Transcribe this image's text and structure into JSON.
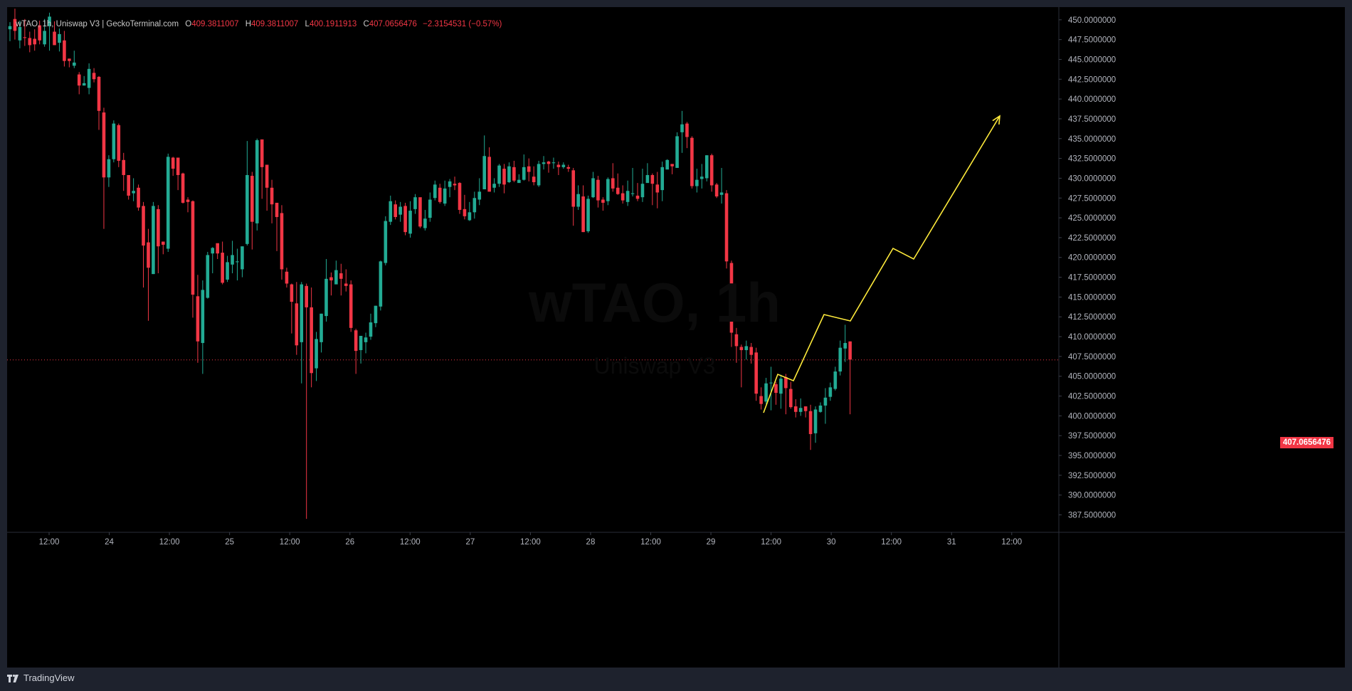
{
  "legend": {
    "symbol": "wTAO, 1h, Uniswap V3 | GeckoTerminal.com",
    "open_key": "O",
    "open": "409.3811007",
    "high_key": "H",
    "high": "409.3811007",
    "low_key": "L",
    "low": "400.1911913",
    "close_key": "C",
    "close": "407.0656476",
    "change": "−2.3154531 (−0.57%)"
  },
  "watermark": {
    "title": "wTAO, 1h",
    "subtitle": "Uniswap V3"
  },
  "current_price_label": "407.0656476",
  "brand": "TradingView",
  "colors": {
    "up": "#22ab94",
    "down": "#f23645",
    "drawing": "#ffeb3b",
    "background": "#000000"
  },
  "chart_data": {
    "type": "candlestick",
    "ylim": [
      385.3,
      451.6
    ],
    "y_ticks": [
      "450.0000000",
      "447.5000000",
      "445.0000000",
      "442.5000000",
      "440.0000000",
      "437.5000000",
      "435.0000000",
      "432.5000000",
      "430.0000000",
      "427.5000000",
      "425.0000000",
      "422.5000000",
      "420.0000000",
      "417.5000000",
      "415.0000000",
      "412.5000000",
      "410.0000000",
      "407.5000000",
      "405.0000000",
      "402.5000000",
      "400.0000000",
      "397.5000000",
      "395.0000000",
      "392.5000000",
      "390.0000000",
      "387.5000000"
    ],
    "x_ticks": [
      "12:00",
      "24",
      "12:00",
      "25",
      "12:00",
      "26",
      "12:00",
      "27",
      "12:00",
      "28",
      "12:00",
      "29",
      "12:00",
      "30",
      "12:00",
      "31",
      "12:00"
    ],
    "candles": [
      [
        448.8,
        449.2,
        449.7,
        447.3
      ],
      [
        450.1,
        448.6,
        451.4,
        447.5
      ],
      [
        447.4,
        449.1,
        449.9,
        446.4
      ],
      [
        447.8,
        447.7,
        450.1,
        446.7
      ],
      [
        447.7,
        446.8,
        448.5,
        445.9
      ],
      [
        447.6,
        446.9,
        448.8,
        446.1
      ],
      [
        449.3,
        447.4,
        449.9,
        446.9
      ],
      [
        446.9,
        448.6,
        450.1,
        446.6
      ],
      [
        449.2,
        450.4,
        450.9,
        446.1
      ],
      [
        448.5,
        446.8,
        449.8,
        446.8
      ],
      [
        447.1,
        448.2,
        448.9,
        446.0
      ],
      [
        447.4,
        444.8,
        448.6,
        444.1
      ],
      [
        445.1,
        444.8,
        445.1,
        444.0
      ],
      [
        444.2,
        444.6,
        446.1,
        443.9
      ],
      [
        443.1,
        441.7,
        443.4,
        440.6
      ],
      [
        441.7,
        442.0,
        442.9,
        441.7
      ],
      [
        441.4,
        443.8,
        444.5,
        440.6
      ],
      [
        443.3,
        442.5,
        443.9,
        442.1
      ],
      [
        442.8,
        438.5,
        442.9,
        436.1
      ],
      [
        438.3,
        430.1,
        438.9,
        423.6
      ],
      [
        430.1,
        432.4,
        432.9,
        428.9
      ],
      [
        432.4,
        436.9,
        437.3,
        432.0
      ],
      [
        436.7,
        432.2,
        436.9,
        431.4
      ],
      [
        432.3,
        430.4,
        433.2,
        428.4
      ],
      [
        430.4,
        427.8,
        430.4,
        427.3
      ],
      [
        428.1,
        428.4,
        430.0,
        427.1
      ],
      [
        428.8,
        426.3,
        429.2,
        425.9
      ],
      [
        426.5,
        421.5,
        427.0,
        416.2
      ],
      [
        421.9,
        418.7,
        423.6,
        412.0
      ],
      [
        417.9,
        426.5,
        427.0,
        417.9
      ],
      [
        426.1,
        421.4,
        426.6,
        418.0
      ],
      [
        422.0,
        421.6,
        422.0,
        420.4
      ],
      [
        421.1,
        432.7,
        433.1,
        420.7
      ],
      [
        432.6,
        431.2,
        432.7,
        430.3
      ],
      [
        432.6,
        430.4,
        432.5,
        428.5
      ],
      [
        430.6,
        426.9,
        430.7,
        426.8
      ],
      [
        427.3,
        427.0,
        427.6,
        425.7
      ],
      [
        427.1,
        415.3,
        427.2,
        412.4
      ],
      [
        415.1,
        409.4,
        417.8,
        406.7
      ],
      [
        409.2,
        415.9,
        417.1,
        405.3
      ],
      [
        414.9,
        420.3,
        420.7,
        414.8
      ],
      [
        420.5,
        421.2,
        421.3,
        418.0
      ],
      [
        421.8,
        420.5,
        421.6,
        419.8
      ],
      [
        420.6,
        416.8,
        422.0,
        416.6
      ],
      [
        417.2,
        419.4,
        420.2,
        416.9
      ],
      [
        419.1,
        420.3,
        422.1,
        418.0
      ],
      [
        419.4,
        419.5,
        421.1,
        417.1
      ],
      [
        418.5,
        421.4,
        421.4,
        417.5
      ],
      [
        421.7,
        430.4,
        434.7,
        421.5
      ],
      [
        430.3,
        424.5,
        430.8,
        421.0
      ],
      [
        424.3,
        434.8,
        435.0,
        423.4
      ],
      [
        434.9,
        431.4,
        434.5,
        427.4
      ],
      [
        431.7,
        428.8,
        431.4,
        425.9
      ],
      [
        428.8,
        426.7,
        429.8,
        424.3
      ],
      [
        426.9,
        425.1,
        426.6,
        420.8
      ],
      [
        425.6,
        418.5,
        426.6,
        417.2
      ],
      [
        418.2,
        416.7,
        418.7,
        416.2
      ],
      [
        416.6,
        414.4,
        416.7,
        410.4
      ],
      [
        414.2,
        408.9,
        416.9,
        407.7
      ],
      [
        409.3,
        416.6,
        416.9,
        404.1
      ],
      [
        416.4,
        413.7,
        416.7,
        387.0
      ],
      [
        413.7,
        405.4,
        416.2,
        403.6
      ],
      [
        406.0,
        409.7,
        410.6,
        404.4
      ],
      [
        409.3,
        412.9,
        412.9,
        408.0
      ],
      [
        412.6,
        417.3,
        419.8,
        411.9
      ],
      [
        417.5,
        417.1,
        418.1,
        415.2
      ],
      [
        416.6,
        418.4,
        419.6,
        417.1
      ],
      [
        418.0,
        417.3,
        419.2,
        415.2
      ],
      [
        416.7,
        416.4,
        418.5,
        415.7
      ],
      [
        416.6,
        411.1,
        417.1,
        410.6
      ],
      [
        410.8,
        408.2,
        411.0,
        405.3
      ],
      [
        408.3,
        410.1,
        410.1,
        406.6
      ],
      [
        409.3,
        409.9,
        410.5,
        407.9
      ],
      [
        410.0,
        411.8,
        412.9,
        409.6
      ],
      [
        411.7,
        413.9,
        413.9,
        411.2
      ],
      [
        413.8,
        419.5,
        419.6,
        413.3
      ],
      [
        419.3,
        424.6,
        425.2,
        419.0
      ],
      [
        424.5,
        427.1,
        427.8,
        424.1
      ],
      [
        426.7,
        425.1,
        427.2,
        424.8
      ],
      [
        425.4,
        426.4,
        427.0,
        424.5
      ],
      [
        426.5,
        423.2,
        426.9,
        422.8
      ],
      [
        423.0,
        425.9,
        427.1,
        422.5
      ],
      [
        426.1,
        427.6,
        428.0,
        425.5
      ],
      [
        427.6,
        423.9,
        427.5,
        423.7
      ],
      [
        423.7,
        424.9,
        426.0,
        423.4
      ],
      [
        425.0,
        427.3,
        428.2,
        424.5
      ],
      [
        427.5,
        429.2,
        429.7,
        427.2
      ],
      [
        428.8,
        427.0,
        429.3,
        426.8
      ],
      [
        426.8,
        428.7,
        429.7,
        426.5
      ],
      [
        428.9,
        429.6,
        429.9,
        427.6
      ],
      [
        429.3,
        429.1,
        430.2,
        428.5
      ],
      [
        429.4,
        426.0,
        429.5,
        425.5
      ],
      [
        426.1,
        425.2,
        427.9,
        424.8
      ],
      [
        424.7,
        425.7,
        427.0,
        424.6
      ],
      [
        425.7,
        427.5,
        428.3,
        424.9
      ],
      [
        427.3,
        428.3,
        430.0,
        426.6
      ],
      [
        428.6,
        432.8,
        435.4,
        428.6
      ],
      [
        432.7,
        428.3,
        433.9,
        428.3
      ],
      [
        428.8,
        429.3,
        430.0,
        428.2
      ],
      [
        429.3,
        431.6,
        431.8,
        428.9
      ],
      [
        431.2,
        429.2,
        431.8,
        428.1
      ],
      [
        429.5,
        431.5,
        432.0,
        429.4
      ],
      [
        431.4,
        429.7,
        432.2,
        429.5
      ],
      [
        429.4,
        429.8,
        430.5,
        429.6
      ],
      [
        429.8,
        431.4,
        433.0,
        429.7
      ],
      [
        431.5,
        430.8,
        432.5,
        429.6
      ],
      [
        430.2,
        429.5,
        431.5,
        429.1
      ],
      [
        429.1,
        431.8,
        432.2,
        428.9
      ],
      [
        431.8,
        432.0,
        432.8,
        431.1
      ],
      [
        432.1,
        431.8,
        432.2,
        430.7
      ],
      [
        431.9,
        432.0,
        432.6,
        431.2
      ],
      [
        431.7,
        431.4,
        432.1,
        430.4
      ],
      [
        431.4,
        431.7,
        432.0,
        431.2
      ],
      [
        431.4,
        431.2,
        431.7,
        430.8
      ],
      [
        431.0,
        426.4,
        431.3,
        424.0
      ],
      [
        426.4,
        428.0,
        429.1,
        426.0
      ],
      [
        427.7,
        423.2,
        429.1,
        423.2
      ],
      [
        423.3,
        427.4,
        427.8,
        423.1
      ],
      [
        427.6,
        430.0,
        430.8,
        427.5
      ],
      [
        429.8,
        427.2,
        430.3,
        426.3
      ],
      [
        427.3,
        426.9,
        427.6,
        425.9
      ],
      [
        427.1,
        429.9,
        430.1,
        426.6
      ],
      [
        430.0,
        428.7,
        431.9,
        428.3
      ],
      [
        428.8,
        428.0,
        430.6,
        427.9
      ],
      [
        428.1,
        427.2,
        429.1,
        426.8
      ],
      [
        427.0,
        428.4,
        429.7,
        426.5
      ],
      [
        428.0,
        428.1,
        431.3,
        427.7
      ],
      [
        427.8,
        427.4,
        429.4,
        427.1
      ],
      [
        427.6,
        429.3,
        431.2,
        427.0
      ],
      [
        429.4,
        430.4,
        431.9,
        429.5
      ],
      [
        430.4,
        429.3,
        430.6,
        426.6
      ],
      [
        429.2,
        428.2,
        430.8,
        426.2
      ],
      [
        428.5,
        431.4,
        432.1,
        427.1
      ],
      [
        431.1,
        432.3,
        432.4,
        431.4
      ],
      [
        431.8,
        431.5,
        431.8,
        430.5
      ],
      [
        431.3,
        435.3,
        435.8,
        431.4
      ],
      [
        435.8,
        436.8,
        438.5,
        433.2
      ],
      [
        436.9,
        435.2,
        437.1,
        433.8
      ],
      [
        435.1,
        429.0,
        435.3,
        428.7
      ],
      [
        429.0,
        429.8,
        431.2,
        428.2
      ],
      [
        429.9,
        430.2,
        431.8,
        428.7
      ],
      [
        430.0,
        432.9,
        432.9,
        429.6
      ],
      [
        432.9,
        429.1,
        433.1,
        428.3
      ],
      [
        429.2,
        427.7,
        429.4,
        427.5
      ],
      [
        427.9,
        428.2,
        431.3,
        426.8
      ],
      [
        428.1,
        419.5,
        428.5,
        418.6
      ],
      [
        419.3,
        410.5,
        419.6,
        408.7
      ],
      [
        410.3,
        408.8,
        411.1,
        406.7
      ],
      [
        408.7,
        408.3,
        409.0,
        403.6
      ],
      [
        408.3,
        408.8,
        409.5,
        407.1
      ],
      [
        408.7,
        407.7,
        409.2,
        406.6
      ],
      [
        408.0,
        402.8,
        408.6,
        401.9
      ],
      [
        402.5,
        401.5,
        403.6,
        400.8
      ],
      [
        401.8,
        404.1,
        404.8,
        401.5
      ],
      [
        404.2,
        404.2,
        406.2,
        400.7
      ],
      [
        404.0,
        402.9,
        404.3,
        401.4
      ],
      [
        402.8,
        404.7,
        405.2,
        400.9
      ],
      [
        404.9,
        403.5,
        405.3,
        400.2
      ],
      [
        403.4,
        401.1,
        404.3,
        400.9
      ],
      [
        401.2,
        400.5,
        402.1,
        399.8
      ],
      [
        400.5,
        401.0,
        402.2,
        400.0
      ],
      [
        401.2,
        400.6,
        401.2,
        399.8
      ],
      [
        400.6,
        397.7,
        401.4,
        395.7
      ],
      [
        397.8,
        400.8,
        401.2,
        396.6
      ],
      [
        400.5,
        401.3,
        401.7,
        400.4
      ],
      [
        401.3,
        402.3,
        403.5,
        399.0
      ],
      [
        402.4,
        403.6,
        404.2,
        401.9
      ],
      [
        403.4,
        405.6,
        406.2,
        403.2
      ],
      [
        405.6,
        408.6,
        409.5,
        405.1
      ],
      [
        408.5,
        409.2,
        411.5,
        406.8
      ],
      [
        409.4,
        407.1,
        409.4,
        400.2
      ]
    ],
    "drawing_points": [
      [
        1063,
        570
      ],
      [
        1083,
        516
      ],
      [
        1105,
        525
      ],
      [
        1148,
        432
      ],
      [
        1185,
        441
      ],
      [
        1245,
        339
      ],
      [
        1274,
        354
      ],
      [
        1395,
        153
      ]
    ],
    "current_price": 407.0656476
  }
}
